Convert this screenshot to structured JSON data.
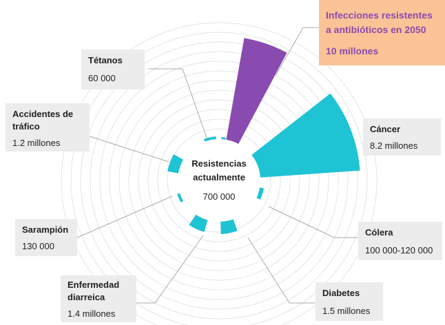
{
  "center": {
    "title_line1": "Resistencias",
    "title_line2": "actualmente",
    "value": "700 000"
  },
  "items": [
    {
      "label_line1": "Infecciones resistentes",
      "label_line2": "a antibióticos en 2050",
      "value": "10 millones"
    },
    {
      "label_line1": "Cáncer",
      "value": "8.2 millones"
    },
    {
      "label_line1": "Cólera",
      "value": "100 000-120 000"
    },
    {
      "label_line1": "Diabetes",
      "value": "1.5 millones"
    },
    {
      "label_line1": "Enfermedad",
      "label_line2": "diarreica",
      "value": "1.4 millones"
    },
    {
      "label_line1": "Sarampión",
      "value": "130 000"
    },
    {
      "label_line1": "Accidentes de",
      "label_line2": "tráfico",
      "value": "1.2 millones"
    },
    {
      "label_line1": "Tétanos",
      "value": "60 000"
    }
  ]
}
